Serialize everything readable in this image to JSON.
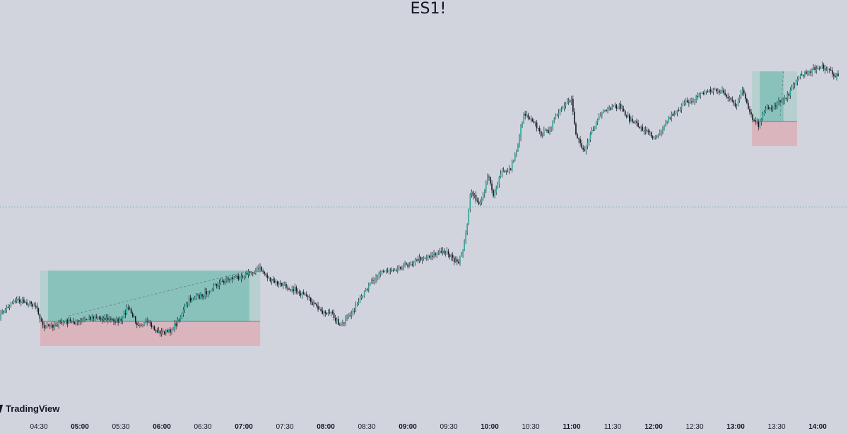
{
  "brand": {
    "name": "TradingView",
    "icon": "tradingview-logo"
  },
  "chart_data": {
    "type": "candlestick",
    "title": "ES1!",
    "xlabel": "",
    "ylabel": "",
    "x_ticks": [
      {
        "label": "04:30",
        "bold": false
      },
      {
        "label": "05:00",
        "bold": true
      },
      {
        "label": "05:30",
        "bold": false
      },
      {
        "label": "06:00",
        "bold": true
      },
      {
        "label": "06:30",
        "bold": false
      },
      {
        "label": "07:00",
        "bold": true
      },
      {
        "label": "07:30",
        "bold": false
      },
      {
        "label": "08:00",
        "bold": true
      },
      {
        "label": "08:30",
        "bold": false
      },
      {
        "label": "09:00",
        "bold": true
      },
      {
        "label": "09:30",
        "bold": false
      },
      {
        "label": "10:00",
        "bold": true
      },
      {
        "label": "10:30",
        "bold": false
      },
      {
        "label": "11:00",
        "bold": true
      },
      {
        "label": "11:30",
        "bold": false
      },
      {
        "label": "12:00",
        "bold": true
      },
      {
        "label": "12:30",
        "bold": false
      },
      {
        "label": "13:00",
        "bold": true
      },
      {
        "label": "13:30",
        "bold": false
      },
      {
        "label": "14:00",
        "bold": true
      }
    ],
    "price_path": [
      [
        "04:00",
        450
      ],
      [
        "04:12",
        424
      ],
      [
        "04:28",
        432
      ],
      [
        "04:33",
        462
      ],
      [
        "04:38",
        462
      ],
      [
        "04:50",
        455
      ],
      [
        "05:00",
        456
      ],
      [
        "05:10",
        448
      ],
      [
        "05:20",
        452
      ],
      [
        "05:30",
        455
      ],
      [
        "05:35",
        435
      ],
      [
        "05:42",
        458
      ],
      [
        "05:50",
        458
      ],
      [
        "05:57",
        470
      ],
      [
        "06:05",
        470
      ],
      [
        "06:10",
        460
      ],
      [
        "06:20",
        425
      ],
      [
        "06:30",
        418
      ],
      [
        "06:38",
        405
      ],
      [
        "06:48",
        395
      ],
      [
        "06:56",
        392
      ],
      [
        "07:06",
        385
      ],
      [
        "07:12",
        380
      ],
      [
        "07:20",
        398
      ],
      [
        "07:30",
        405
      ],
      [
        "07:38",
        410
      ],
      [
        "07:48",
        425
      ],
      [
        "07:56",
        440
      ],
      [
        "08:05",
        445
      ],
      [
        "08:11",
        462
      ],
      [
        "08:20",
        440
      ],
      [
        "08:27",
        420
      ],
      [
        "08:32",
        400
      ],
      [
        "08:40",
        385
      ],
      [
        "08:50",
        380
      ],
      [
        "09:00",
        375
      ],
      [
        "09:10",
        365
      ],
      [
        "09:20",
        360
      ],
      [
        "09:28",
        355
      ],
      [
        "09:37",
        375
      ],
      [
        "09:42",
        340
      ],
      [
        "09:46",
        272
      ],
      [
        "09:53",
        290
      ],
      [
        "09:59",
        245
      ],
      [
        "10:03",
        280
      ],
      [
        "10:08",
        245
      ],
      [
        "10:15",
        240
      ],
      [
        "10:20",
        210
      ],
      [
        "10:25",
        160
      ],
      [
        "10:32",
        170
      ],
      [
        "10:37",
        190
      ],
      [
        "10:43",
        185
      ],
      [
        "10:50",
        160
      ],
      [
        "10:58",
        145
      ],
      [
        "11:00",
        140
      ],
      [
        "11:03",
        190
      ],
      [
        "11:09",
        212
      ],
      [
        "11:14",
        190
      ],
      [
        "11:20",
        165
      ],
      [
        "11:27",
        155
      ],
      [
        "11:35",
        150
      ],
      [
        "11:42",
        168
      ],
      [
        "11:50",
        180
      ],
      [
        "11:58",
        190
      ],
      [
        "12:00",
        195
      ],
      [
        "12:05",
        185
      ],
      [
        "12:12",
        165
      ],
      [
        "12:18",
        155
      ],
      [
        "12:24",
        145
      ],
      [
        "12:30",
        140
      ],
      [
        "12:35",
        132
      ],
      [
        "12:42",
        128
      ],
      [
        "12:50",
        128
      ],
      [
        "12:55",
        140
      ],
      [
        "13:00",
        150
      ],
      [
        "13:05",
        128
      ],
      [
        "13:08",
        148
      ],
      [
        "13:12",
        168
      ],
      [
        "13:17",
        178
      ],
      [
        "13:22",
        155
      ],
      [
        "13:28",
        150
      ],
      [
        "13:35",
        140
      ],
      [
        "13:40",
        130
      ],
      [
        "13:45",
        110
      ],
      [
        "13:51",
        103
      ],
      [
        "13:57",
        98
      ],
      [
        "14:03",
        95
      ],
      [
        "14:08",
        97
      ],
      [
        "14:13",
        110
      ],
      [
        "14:15",
        105
      ]
    ],
    "positions": [
      {
        "side": "long",
        "entry_time": "04:31",
        "target_time": "07:04",
        "end_time": "07:12",
        "entry": 455,
        "target": 383,
        "stop": 490
      },
      {
        "side": "long",
        "entry_time": "13:12",
        "target_time": "13:35",
        "end_time": "13:45",
        "entry": 172,
        "target": 101,
        "stop": 207
      }
    ],
    "reference_line": {
      "value": 293,
      "style": "dotted"
    },
    "colors": {
      "background": "#d1d4dc",
      "up_candle": "#26a69a",
      "down_candle": "#131722",
      "wick": "#131722",
      "profit_zone": "#89c2bb",
      "profit_tail": "#b6cfcf",
      "loss_zone": "#dbb5bd",
      "reference_line": "#5fa8b0"
    }
  }
}
